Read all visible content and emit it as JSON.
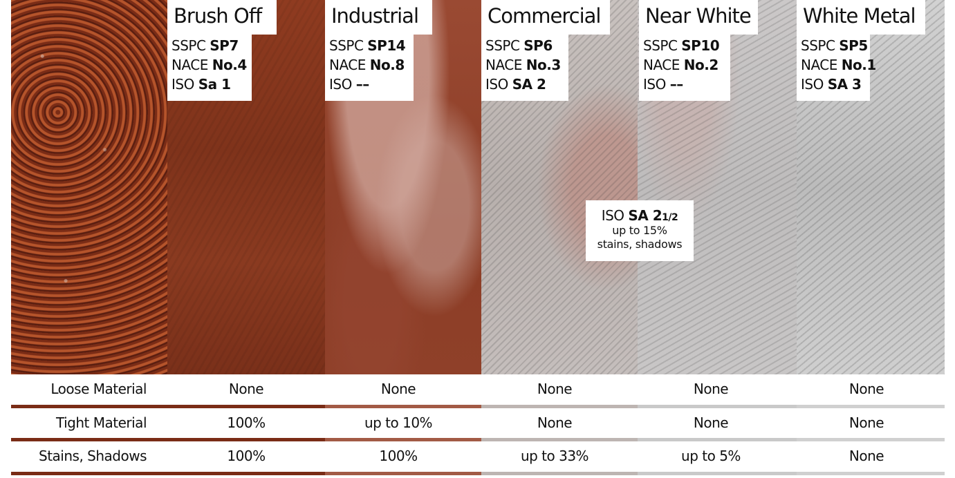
{
  "columns": [
    {
      "title": "",
      "sspc": "",
      "nace": "",
      "iso": ""
    },
    {
      "title": "Brush Off",
      "sspc": "SP7",
      "nace": "No.4",
      "iso": "Sa 1"
    },
    {
      "title": "Industrial",
      "sspc": "SP14",
      "nace": "No.8",
      "iso": "––"
    },
    {
      "title": "Commercial",
      "sspc": "SP6",
      "nace": "No.3",
      "iso": "SA 2"
    },
    {
      "title": "Near White",
      "sspc": "SP10",
      "nace": "No.2",
      "iso": "––"
    },
    {
      "title": "White Metal",
      "sspc": "SP5",
      "nace": "No.1",
      "iso": "SA 3"
    }
  ],
  "prefix": {
    "sspc": "SSPC",
    "nace": "NACE",
    "iso": "ISO"
  },
  "callout": {
    "prefix": "ISO",
    "grade": "SA 2",
    "fraction": "1/2",
    "line2": "up to 15%",
    "line3": "stains, shadows"
  },
  "rows": [
    {
      "name": "Loose Material",
      "values": [
        "None",
        "None",
        "None",
        "None",
        "None"
      ]
    },
    {
      "name": "Tight Material",
      "values": [
        "100%",
        "up to 10%",
        "None",
        "None",
        "None"
      ]
    },
    {
      "name": "Stains, Shadows",
      "values": [
        "100%",
        "100%",
        "up to 33%",
        "up to 5%",
        "None"
      ]
    }
  ]
}
